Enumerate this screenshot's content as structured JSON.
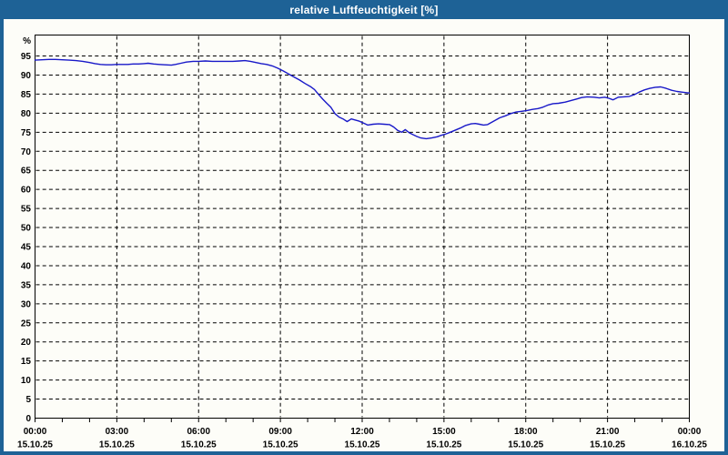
{
  "window": {
    "title": "relative Luftfeuchtigkeit [%]"
  },
  "colors": {
    "titlebar_bg": "#1E6296",
    "frame": "#1E6296",
    "title_text": "#FFFFFF",
    "background": "#FDFDF8",
    "grid": "#000000",
    "axis": "#000000",
    "label_text": "#000000",
    "line": "#1818C8"
  },
  "chart_data": {
    "type": "line",
    "title": "relative Luftfeuchtigkeit [%]",
    "unit_label": "%",
    "xlabel": "",
    "ylabel": "relative Luftfeuchtigkeit",
    "xlim": [
      0,
      24
    ],
    "ylim": [
      0,
      100.5
    ],
    "ytick_step": 5,
    "ytick_labels": [
      "0",
      "5",
      "10",
      "15",
      "20",
      "25",
      "30",
      "35",
      "40",
      "45",
      "50",
      "55",
      "60",
      "65",
      "70",
      "75",
      "80",
      "85",
      "90",
      "95"
    ],
    "xticks_major": [
      0,
      3,
      6,
      9,
      12,
      15,
      18,
      21,
      24
    ],
    "xtick_time_labels": [
      "00:00",
      "03:00",
      "06:00",
      "09:00",
      "12:00",
      "15:00",
      "18:00",
      "21:00",
      "00:00"
    ],
    "xtick_date_labels": [
      "15.10.25",
      "15.10.25",
      "15.10.25",
      "15.10.25",
      "15.10.25",
      "15.10.25",
      "15.10.25",
      "15.10.25",
      "16.10.25"
    ],
    "xticks_minor_every_hours": 1,
    "grid": true,
    "grid_style": "dashed",
    "legend_position": "none",
    "series": [
      {
        "name": "relative Luftfeuchtigkeit",
        "color": "#1818C8",
        "points": [
          [
            0.0,
            93.9
          ],
          [
            0.25,
            94.0
          ],
          [
            0.5,
            94.1
          ],
          [
            0.75,
            94.1
          ],
          [
            1.0,
            94.0
          ],
          [
            1.25,
            93.9
          ],
          [
            1.5,
            93.8
          ],
          [
            1.75,
            93.6
          ],
          [
            2.0,
            93.3
          ],
          [
            2.2,
            93.0
          ],
          [
            2.4,
            92.8
          ],
          [
            2.6,
            92.7
          ],
          [
            2.8,
            92.7
          ],
          [
            3.0,
            92.8
          ],
          [
            3.2,
            92.8
          ],
          [
            3.4,
            92.8
          ],
          [
            3.6,
            92.9
          ],
          [
            3.8,
            92.9
          ],
          [
            4.0,
            93.0
          ],
          [
            4.15,
            93.1
          ],
          [
            4.35,
            92.9
          ],
          [
            4.55,
            92.8
          ],
          [
            4.75,
            92.7
          ],
          [
            5.0,
            92.6
          ],
          [
            5.15,
            92.8
          ],
          [
            5.35,
            93.1
          ],
          [
            5.55,
            93.4
          ],
          [
            5.8,
            93.6
          ],
          [
            6.0,
            93.6
          ],
          [
            6.25,
            93.7
          ],
          [
            6.5,
            93.6
          ],
          [
            6.75,
            93.6
          ],
          [
            7.0,
            93.6
          ],
          [
            7.25,
            93.6
          ],
          [
            7.5,
            93.7
          ],
          [
            7.7,
            93.8
          ],
          [
            7.9,
            93.6
          ],
          [
            8.1,
            93.3
          ],
          [
            8.3,
            93.0
          ],
          [
            8.5,
            92.8
          ],
          [
            8.7,
            92.4
          ],
          [
            8.9,
            91.8
          ],
          [
            9.1,
            91.1
          ],
          [
            9.3,
            90.3
          ],
          [
            9.5,
            89.5
          ],
          [
            9.7,
            88.7
          ],
          [
            9.9,
            87.8
          ],
          [
            10.1,
            87.0
          ],
          [
            10.25,
            86.2
          ],
          [
            10.4,
            84.9
          ],
          [
            10.55,
            83.7
          ],
          [
            10.7,
            82.6
          ],
          [
            10.85,
            81.6
          ],
          [
            11.0,
            79.9
          ],
          [
            11.15,
            79.0
          ],
          [
            11.3,
            78.5
          ],
          [
            11.45,
            77.8
          ],
          [
            11.6,
            78.5
          ],
          [
            11.75,
            78.2
          ],
          [
            11.9,
            77.9
          ],
          [
            12.05,
            77.4
          ],
          [
            12.2,
            76.9
          ],
          [
            12.4,
            77.1
          ],
          [
            12.6,
            77.2
          ],
          [
            12.8,
            77.1
          ],
          [
            13.0,
            77.0
          ],
          [
            13.15,
            76.4
          ],
          [
            13.3,
            75.5
          ],
          [
            13.45,
            75.0
          ],
          [
            13.58,
            75.7
          ],
          [
            13.72,
            74.9
          ],
          [
            13.85,
            74.4
          ],
          [
            14.0,
            73.9
          ],
          [
            14.15,
            73.5
          ],
          [
            14.35,
            73.3
          ],
          [
            14.55,
            73.5
          ],
          [
            14.75,
            73.8
          ],
          [
            14.9,
            74.2
          ],
          [
            15.05,
            74.5
          ],
          [
            15.2,
            74.9
          ],
          [
            15.4,
            75.5
          ],
          [
            15.6,
            76.1
          ],
          [
            15.8,
            76.8
          ],
          [
            16.0,
            77.2
          ],
          [
            16.15,
            77.3
          ],
          [
            16.3,
            77.1
          ],
          [
            16.45,
            76.9
          ],
          [
            16.6,
            77.0
          ],
          [
            16.75,
            77.6
          ],
          [
            16.9,
            78.2
          ],
          [
            17.05,
            78.8
          ],
          [
            17.25,
            79.3
          ],
          [
            17.45,
            79.9
          ],
          [
            17.65,
            80.3
          ],
          [
            17.85,
            80.5
          ],
          [
            18.05,
            80.7
          ],
          [
            18.25,
            81.0
          ],
          [
            18.45,
            81.2
          ],
          [
            18.6,
            81.5
          ],
          [
            18.8,
            82.1
          ],
          [
            19.0,
            82.5
          ],
          [
            19.2,
            82.6
          ],
          [
            19.45,
            82.9
          ],
          [
            19.65,
            83.3
          ],
          [
            19.85,
            83.7
          ],
          [
            20.05,
            84.1
          ],
          [
            20.25,
            84.3
          ],
          [
            20.5,
            84.2
          ],
          [
            20.7,
            84.0
          ],
          [
            20.9,
            84.2
          ],
          [
            21.05,
            83.9
          ],
          [
            21.2,
            83.5
          ],
          [
            21.4,
            84.2
          ],
          [
            21.6,
            84.3
          ],
          [
            21.8,
            84.4
          ],
          [
            22.0,
            84.9
          ],
          [
            22.15,
            85.5
          ],
          [
            22.35,
            86.1
          ],
          [
            22.55,
            86.5
          ],
          [
            22.75,
            86.8
          ],
          [
            22.95,
            86.9
          ],
          [
            23.15,
            86.5
          ],
          [
            23.35,
            86.0
          ],
          [
            23.55,
            85.7
          ],
          [
            23.75,
            85.5
          ],
          [
            24.0,
            85.3
          ]
        ]
      }
    ]
  }
}
